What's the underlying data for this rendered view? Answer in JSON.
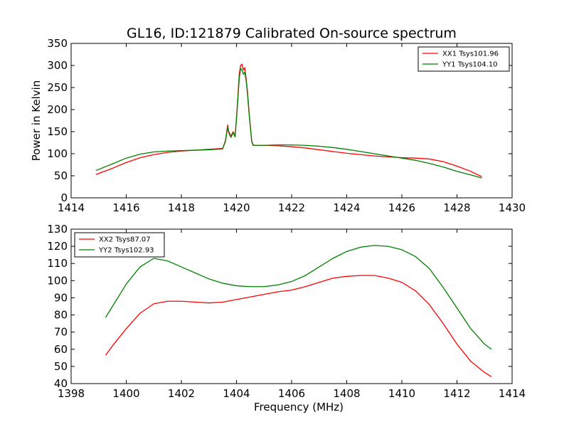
{
  "title": "GL16, ID:121879 Calibrated On-source spectrum",
  "colors": {
    "xx": "#ff0000",
    "yy": "#008000"
  },
  "chart_data": [
    {
      "type": "line",
      "xlabel": "",
      "ylabel": "Power in Kelvin",
      "xlim": [
        1414,
        1430
      ],
      "ylim": [
        0,
        350
      ],
      "xticks": [
        "1414",
        "1416",
        "1418",
        "1420",
        "1422",
        "1424",
        "1426",
        "1428",
        "1430"
      ],
      "yticks": [
        "0",
        "50",
        "100",
        "150",
        "200",
        "250",
        "300",
        "350"
      ],
      "legend_position": "top-right",
      "grid": false,
      "series": [
        {
          "name": "XX1 Tsys101.96",
          "color": "#ff0000",
          "x": [
            1414.9,
            1415.5,
            1416.0,
            1416.5,
            1417.0,
            1417.5,
            1418.0,
            1418.5,
            1419.0,
            1419.5,
            1419.6,
            1419.68,
            1419.72,
            1419.8,
            1419.88,
            1419.95,
            1420.02,
            1420.1,
            1420.15,
            1420.2,
            1420.25,
            1420.3,
            1420.35,
            1420.4,
            1420.45,
            1420.5,
            1420.55,
            1420.6,
            1420.7,
            1421.0,
            1421.5,
            1422.0,
            1422.5,
            1423.0,
            1423.5,
            1424.0,
            1424.5,
            1425.0,
            1425.5,
            1426.0,
            1426.5,
            1427.0,
            1427.5,
            1428.0,
            1428.5,
            1428.9
          ],
          "y": [
            53,
            67,
            80,
            91,
            98,
            103,
            106,
            108,
            110,
            112,
            130,
            165,
            150,
            140,
            150,
            140,
            200,
            280,
            300,
            303,
            290,
            295,
            270,
            240,
            200,
            165,
            130,
            120,
            119,
            119,
            118,
            116,
            113,
            109,
            105,
            101,
            98,
            95,
            93,
            91,
            90,
            88,
            82,
            72,
            60,
            48
          ]
        },
        {
          "name": "YY1 Tsys104.10",
          "color": "#008000",
          "x": [
            1414.9,
            1415.5,
            1416.0,
            1416.5,
            1417.0,
            1417.5,
            1418.0,
            1418.5,
            1419.0,
            1419.5,
            1419.6,
            1419.68,
            1419.72,
            1419.8,
            1419.88,
            1419.95,
            1420.02,
            1420.1,
            1420.15,
            1420.2,
            1420.25,
            1420.3,
            1420.35,
            1420.4,
            1420.45,
            1420.5,
            1420.55,
            1420.6,
            1420.7,
            1421.0,
            1421.5,
            1422.0,
            1422.5,
            1423.0,
            1423.5,
            1424.0,
            1424.5,
            1425.0,
            1425.5,
            1426.0,
            1426.5,
            1427.0,
            1427.5,
            1428.0,
            1428.5,
            1428.9
          ],
          "y": [
            62,
            77,
            90,
            99,
            104,
            106,
            107,
            108,
            109,
            111,
            128,
            160,
            147,
            137,
            148,
            138,
            195,
            270,
            293,
            290,
            280,
            285,
            265,
            235,
            195,
            162,
            128,
            119,
            119,
            119,
            120,
            120,
            119,
            117,
            114,
            110,
            105,
            100,
            95,
            90,
            85,
            78,
            70,
            60,
            52,
            45
          ]
        }
      ]
    },
    {
      "type": "line",
      "xlabel": "Frequency (MHz)",
      "ylabel": "",
      "xlim": [
        1398,
        1414
      ],
      "ylim": [
        40,
        130
      ],
      "xticks": [
        "1398",
        "1400",
        "1402",
        "1404",
        "1406",
        "1408",
        "1410",
        "1412",
        "1414"
      ],
      "yticks": [
        "40",
        "50",
        "60",
        "70",
        "80",
        "90",
        "100",
        "110",
        "120",
        "130"
      ],
      "legend_position": "top-left",
      "grid": false,
      "series": [
        {
          "name": "XX2 Tsys87.07",
          "color": "#ff0000",
          "x": [
            1399.25,
            1399.5,
            1400.0,
            1400.5,
            1401.0,
            1401.5,
            1402.0,
            1402.5,
            1403.0,
            1403.5,
            1404.0,
            1404.5,
            1405.0,
            1405.5,
            1406.0,
            1406.5,
            1407.0,
            1407.5,
            1408.0,
            1408.5,
            1409.0,
            1409.5,
            1410.0,
            1410.5,
            1411.0,
            1411.5,
            1412.0,
            1412.5,
            1413.0,
            1413.25
          ],
          "y": [
            56.5,
            62,
            72,
            81,
            86.5,
            88,
            88,
            87.5,
            87,
            87.5,
            89,
            90.5,
            92,
            93.5,
            94.5,
            96.5,
            99,
            101.5,
            102.5,
            103,
            103,
            101.5,
            99,
            94,
            86,
            75,
            63,
            53,
            46.5,
            44
          ]
        },
        {
          "name": "YY2 Tsys102.93",
          "color": "#008000",
          "x": [
            1399.25,
            1399.5,
            1400.0,
            1400.5,
            1401.0,
            1401.5,
            1402.0,
            1402.5,
            1403.0,
            1403.5,
            1404.0,
            1404.5,
            1405.0,
            1405.5,
            1406.0,
            1406.5,
            1407.0,
            1407.5,
            1408.0,
            1408.5,
            1409.0,
            1409.5,
            1410.0,
            1410.5,
            1411.0,
            1411.5,
            1412.0,
            1412.5,
            1413.0,
            1413.25
          ],
          "y": [
            78.5,
            85,
            98,
            108,
            113,
            111.5,
            108,
            104.5,
            101,
            98.5,
            97,
            96.5,
            96.5,
            97.5,
            99.5,
            103,
            108,
            113,
            117,
            119.5,
            120.5,
            120,
            118,
            114,
            107,
            96,
            84,
            72,
            63,
            60
          ]
        }
      ]
    }
  ]
}
